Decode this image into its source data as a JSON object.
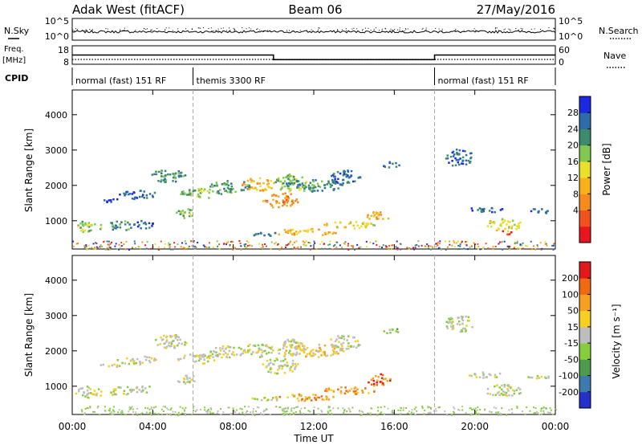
{
  "header": {
    "title_left": "Adak West (fitACF)",
    "title_center": "Beam 06",
    "title_right": "27/May/2016"
  },
  "strip_labels": {
    "nsky": "N.Sky",
    "freq_line1": "Freq.",
    "freq_line2": "[MHz]",
    "cpid": "CPID",
    "nsearch": "N.Search",
    "nave": "Nave",
    "nsky_ticks": [
      "10^5",
      "10^0"
    ],
    "nsearch_ticks": [
      "10^5",
      "10^0"
    ],
    "freq_ticks": [
      "18",
      "8"
    ],
    "nave_ticks": [
      "60",
      "0"
    ]
  },
  "cpid_segments": [
    {
      "label": "normal (fast) 151 RF",
      "start_hour": 0,
      "end_hour": 6
    },
    {
      "label": "themis 3300 RF",
      "start_hour": 6,
      "end_hour": 18
    },
    {
      "label": "normal (fast) 151 RF",
      "start_hour": 18,
      "end_hour": 24
    }
  ],
  "chart_data": [
    {
      "type": "heatmap",
      "panel": "power",
      "ylabel": "Slant Range [km]",
      "yticks": [
        "4000",
        "3000",
        "2000",
        "1000"
      ],
      "xlim": [
        0,
        24
      ],
      "ylim": [
        200,
        4700
      ],
      "colorbar": {
        "label": "Power [dB]",
        "ticks": [
          "28",
          "24",
          "20",
          "16",
          "12",
          "8",
          "4"
        ],
        "colors": [
          "#e8141e",
          "#f0521e",
          "#f58a1e",
          "#f8b01c",
          "#eadf2a",
          "#80c850",
          "#3c8c6c",
          "#2c6ca8",
          "#1a2ae0"
        ]
      },
      "freq_steps_mhz": [
        {
          "start_hour": 0,
          "end_hour": 10,
          "value": 13
        },
        {
          "start_hour": 10,
          "end_hour": 18,
          "value": 10.5
        },
        {
          "start_hour": 18,
          "end_hour": 24,
          "value": 13
        }
      ]
    },
    {
      "type": "heatmap",
      "panel": "velocity",
      "ylabel": "Slant Range [km]",
      "yticks": [
        "4000",
        "3000",
        "2000",
        "1000"
      ],
      "xlim": [
        0,
        24
      ],
      "ylim": [
        200,
        4700
      ],
      "xlabel": "Time UT",
      "xticks": [
        "00:00",
        "04:00",
        "08:00",
        "12:00",
        "16:00",
        "20:00",
        "00:00"
      ],
      "colorbar": {
        "label": "Velocity [m s⁻¹]",
        "ticks": [
          "200",
          "100",
          "50",
          "15",
          "-15",
          "-50",
          "-100",
          "-200"
        ],
        "colors": [
          "#2430c8",
          "#3c7ab0",
          "#4e9a4e",
          "#86cc3c",
          "#bebebe",
          "#f5d020",
          "#f5a020",
          "#f06a14",
          "#e01a1a"
        ]
      }
    }
  ]
}
